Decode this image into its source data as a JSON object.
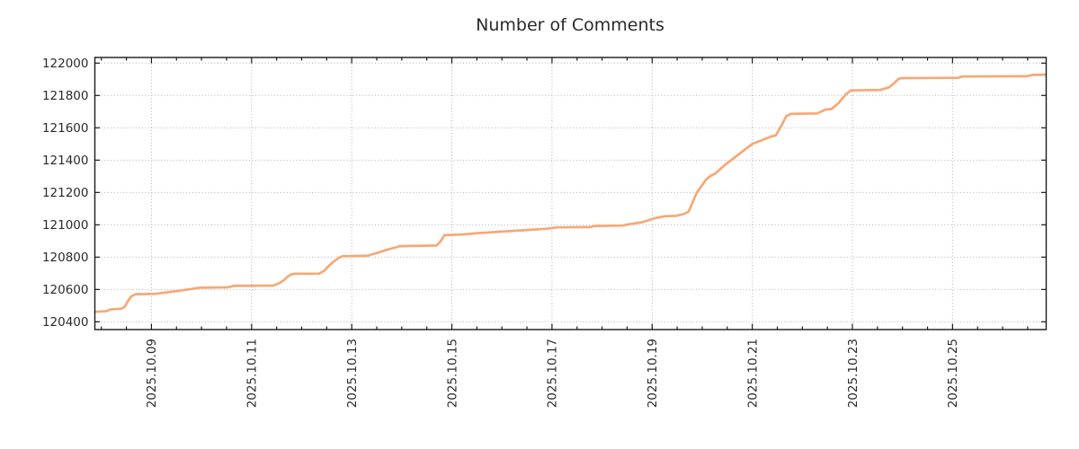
{
  "chart_data": {
    "type": "line",
    "title": "Number of Comments",
    "line_color": "#f6a876",
    "background": "#ffffff",
    "axis_color": "#1a1a1a",
    "grid_color": "#b3b3b3",
    "label_color": "#2a2a2a",
    "grid": "dotted",
    "legend": "none",
    "x_axis": {
      "unit": "date",
      "range_days": [
        7.87,
        26.87
      ],
      "tick_step_days": 0.5,
      "major_tick_days": [
        9,
        11,
        13,
        15,
        17,
        19,
        21,
        23,
        25
      ],
      "tick_labels": [
        "2025.10.09",
        "2025.10.11",
        "2025.10.13",
        "2025.10.15",
        "2025.10.17",
        "2025.10.19",
        "2025.10.21",
        "2025.10.23",
        "2025.10.25"
      ]
    },
    "y_axis": {
      "range": [
        120352,
        122035
      ],
      "ticks": [
        120400,
        120600,
        120800,
        121000,
        121200,
        121400,
        121600,
        121800,
        122000
      ],
      "tick_labels": [
        "120400",
        "120600",
        "120800",
        "121000",
        "121200",
        "121400",
        "121600",
        "121800",
        "122000"
      ]
    },
    "series": [
      {
        "name": "comments",
        "points": [
          [
            7.87,
            120462
          ],
          [
            8.1,
            120466
          ],
          [
            8.19,
            120477
          ],
          [
            8.4,
            120481
          ],
          [
            8.47,
            120495
          ],
          [
            8.53,
            120528
          ],
          [
            8.6,
            120558
          ],
          [
            8.67,
            120569
          ],
          [
            8.72,
            120571
          ],
          [
            9.08,
            120573
          ],
          [
            9.2,
            120578
          ],
          [
            9.33,
            120583
          ],
          [
            9.55,
            120592
          ],
          [
            9.75,
            120601
          ],
          [
            9.96,
            120611
          ],
          [
            10.52,
            120613
          ],
          [
            10.64,
            120622
          ],
          [
            11.43,
            120624
          ],
          [
            11.55,
            120638
          ],
          [
            11.65,
            120658
          ],
          [
            11.72,
            120680
          ],
          [
            11.8,
            120694
          ],
          [
            11.84,
            120697
          ],
          [
            12.35,
            120698
          ],
          [
            12.45,
            120715
          ],
          [
            12.55,
            120748
          ],
          [
            12.65,
            120775
          ],
          [
            12.75,
            120797
          ],
          [
            12.82,
            120806
          ],
          [
            13.3,
            120808
          ],
          [
            13.5,
            120825
          ],
          [
            13.7,
            120845
          ],
          [
            13.9,
            120862
          ],
          [
            13.96,
            120868
          ],
          [
            14.7,
            120872
          ],
          [
            14.78,
            120900
          ],
          [
            14.85,
            120936
          ],
          [
            15.2,
            120940
          ],
          [
            15.5,
            120948
          ],
          [
            16.0,
            120958
          ],
          [
            16.5,
            120968
          ],
          [
            16.9,
            120976
          ],
          [
            17.1,
            120984
          ],
          [
            17.75,
            120986
          ],
          [
            17.87,
            120993
          ],
          [
            18.4,
            120995
          ],
          [
            18.55,
            121004
          ],
          [
            18.8,
            121016
          ],
          [
            19.05,
            121040
          ],
          [
            19.25,
            121053
          ],
          [
            19.48,
            121056
          ],
          [
            19.62,
            121065
          ],
          [
            19.73,
            121082
          ],
          [
            19.81,
            121140
          ],
          [
            19.89,
            121198
          ],
          [
            19.96,
            121228
          ],
          [
            20.08,
            121280
          ],
          [
            20.16,
            121302
          ],
          [
            20.26,
            121316
          ],
          [
            20.42,
            121362
          ],
          [
            20.62,
            121410
          ],
          [
            20.82,
            121458
          ],
          [
            21.0,
            121500
          ],
          [
            21.18,
            121522
          ],
          [
            21.38,
            121546
          ],
          [
            21.47,
            121553
          ],
          [
            21.58,
            121612
          ],
          [
            21.68,
            121673
          ],
          [
            21.78,
            121686
          ],
          [
            22.3,
            121689
          ],
          [
            22.46,
            121713
          ],
          [
            22.58,
            121716
          ],
          [
            22.72,
            121752
          ],
          [
            22.87,
            121808
          ],
          [
            22.97,
            121831
          ],
          [
            23.55,
            121834
          ],
          [
            23.73,
            121850
          ],
          [
            23.82,
            121872
          ],
          [
            23.92,
            121902
          ],
          [
            23.98,
            121907
          ],
          [
            25.1,
            121909
          ],
          [
            25.2,
            121917
          ],
          [
            26.48,
            121919
          ],
          [
            26.6,
            121927
          ],
          [
            26.87,
            121929
          ]
        ]
      }
    ]
  }
}
